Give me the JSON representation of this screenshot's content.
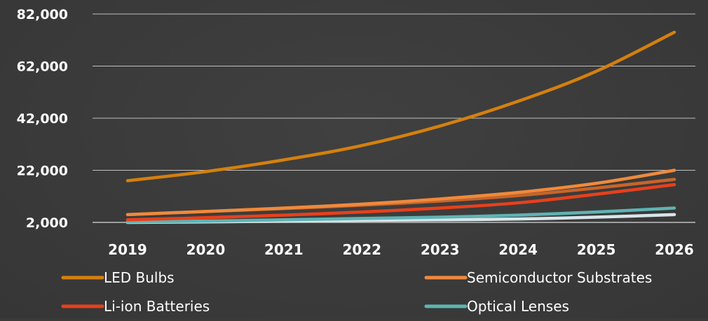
{
  "chart_data": {
    "type": "line",
    "title": "",
    "xlabel": "",
    "ylabel": "",
    "categories": [
      "2019",
      "2020",
      "2021",
      "2022",
      "2023",
      "2024",
      "2025",
      "2026"
    ],
    "ylim": [
      2000,
      82000
    ],
    "yticks": [
      2000,
      22000,
      42000,
      62000,
      82000
    ],
    "ytick_labels": [
      "2,000",
      "22,000",
      "42,000",
      "62,000",
      "82,000"
    ],
    "grid": true,
    "legend_position": "bottom",
    "series": [
      {
        "name": "LED Bulbs",
        "color": "#d4800f",
        "values": [
          18000,
          21500,
          26000,
          31500,
          39000,
          48500,
          60000,
          75000
        ]
      },
      {
        "name": "Semiconductor Substrates",
        "color": "#ef8a3c",
        "values": [
          5000,
          6200,
          7500,
          9000,
          11000,
          13500,
          17000,
          22000
        ]
      },
      {
        "name": "",
        "color": "#c8642a",
        "values": [
          5000,
          6200,
          7300,
          8600,
          10200,
          12300,
          15200,
          18500
        ]
      },
      {
        "name": "Li-ion Batteries",
        "color": "#e8401c",
        "values": [
          3000,
          3800,
          4800,
          6000,
          7500,
          9500,
          12800,
          16500
        ]
      },
      {
        "name": "Optical Lenses",
        "color": "#5fb3b3",
        "values": [
          2200,
          2500,
          3000,
          3500,
          4000,
          4800,
          6000,
          7500
        ]
      },
      {
        "name": "",
        "color": "#d8e6ea",
        "values": [
          2000,
          2200,
          2500,
          2800,
          3000,
          3300,
          4000,
          5000
        ]
      }
    ]
  }
}
